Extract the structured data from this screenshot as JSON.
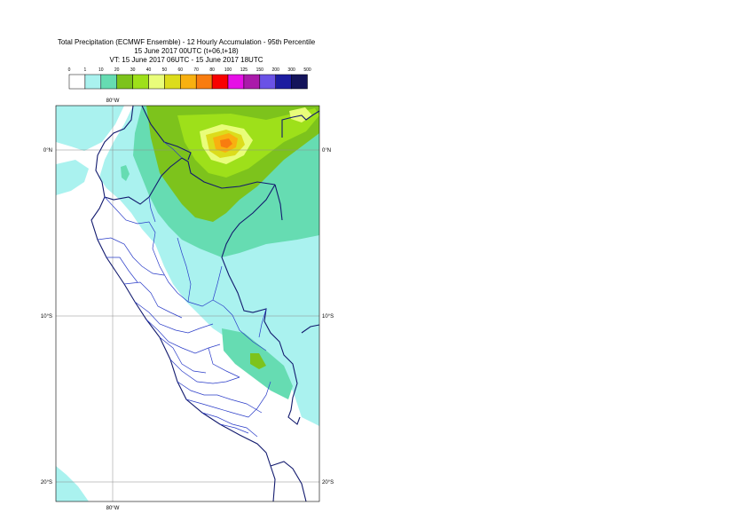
{
  "header": {
    "title": "Total Precipitation (ECMWF Ensemble) - 12 Hourly Accumulation - 95th Percentile",
    "run": "15 June 2017 00UTC (t+06,t+18)",
    "valid": "VT: 15 June 2017 06UTC - 15 June 2017 18UTC"
  },
  "legend": {
    "labels": [
      "0",
      "1",
      "10",
      "20",
      "30",
      "40",
      "50",
      "60",
      "70",
      "80",
      "100",
      "125",
      "150",
      "200",
      "300",
      "500"
    ],
    "colors": [
      "#ffffff",
      "#aaf2ef",
      "#66dcb2",
      "#7dc31c",
      "#9ee01a",
      "#e9fd7a",
      "#dcdc1c",
      "#f8b010",
      "#f87c10",
      "#f80000",
      "#e60fe6",
      "#aa1aaa",
      "#6a52e6",
      "#1c1ca0",
      "#14145a"
    ]
  },
  "map": {
    "lat_labels": [
      {
        "text": "0°N"
      },
      {
        "text": "10°S"
      },
      {
        "text": "20°S"
      }
    ],
    "lon_labels": [
      {
        "text": "80°W"
      },
      {
        "text": "80°W"
      }
    ]
  }
}
